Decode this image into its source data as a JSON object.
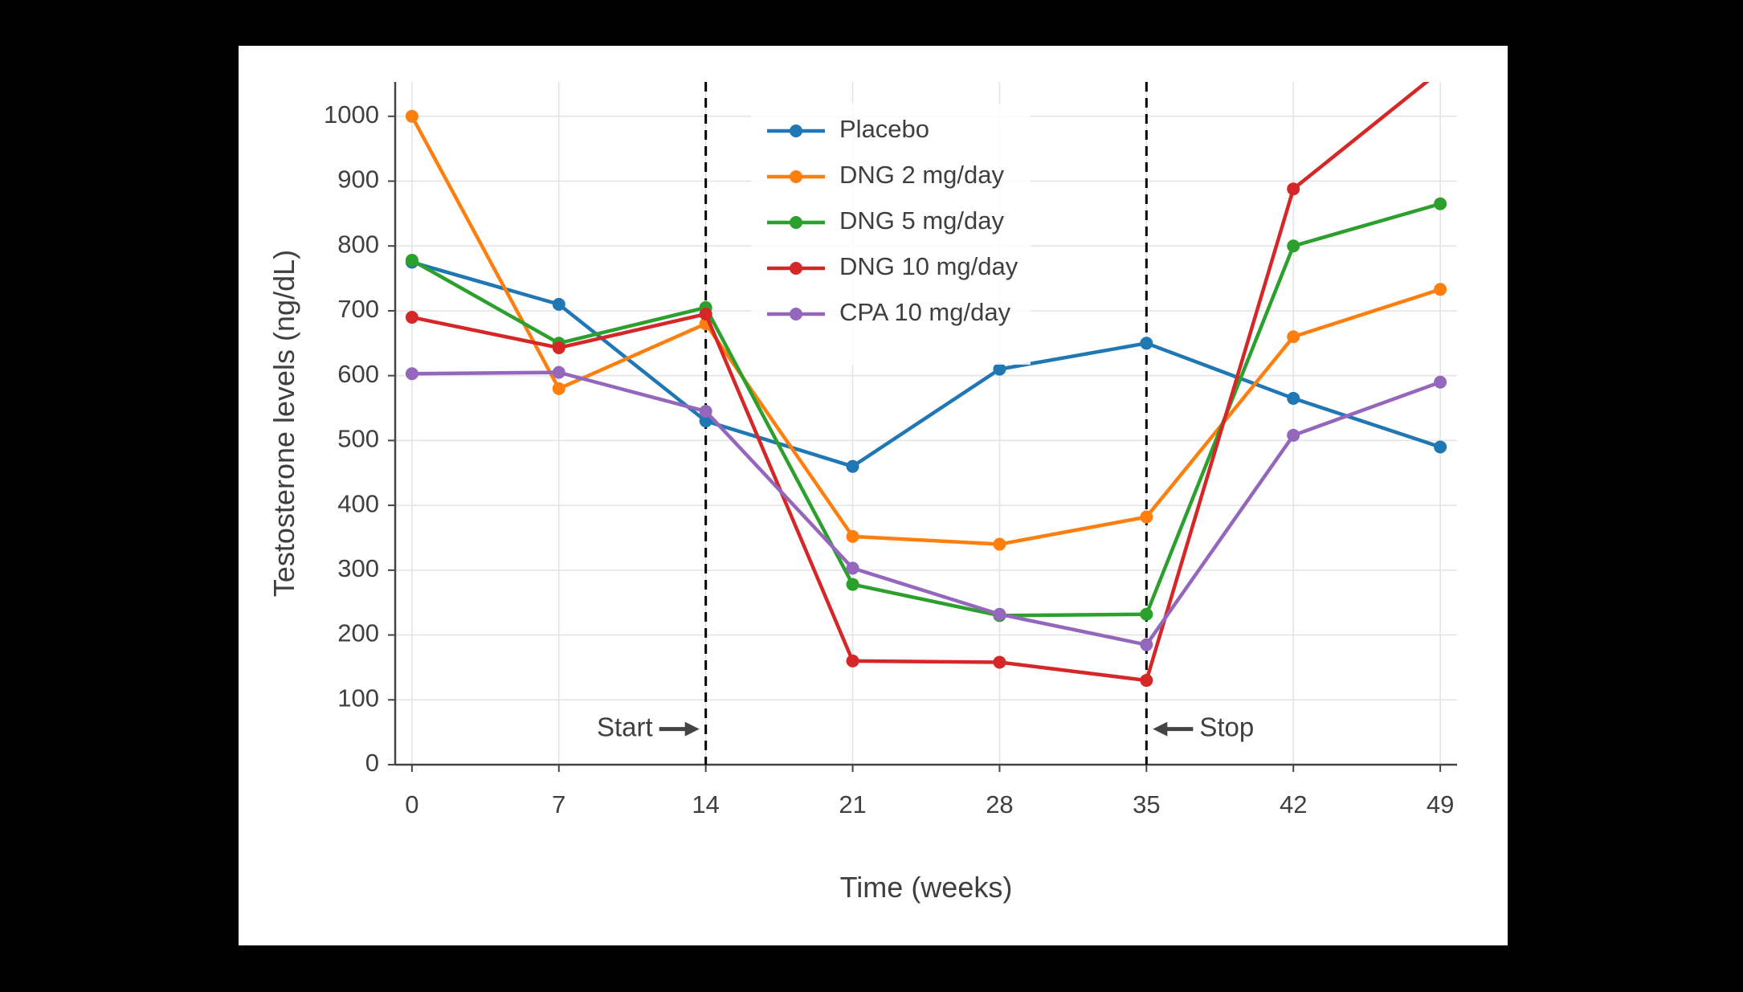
{
  "page": {
    "background": "#000000",
    "card_background": "#ffffff"
  },
  "chart_data": {
    "type": "line",
    "title": "",
    "xlabel": "Time (weeks)",
    "ylabel": "Testosterone levels (ng/dL)",
    "x": [
      0,
      7,
      14,
      21,
      28,
      35,
      42,
      49
    ],
    "x_ticks": [
      "0",
      "7",
      "14",
      "21",
      "28",
      "35",
      "42",
      "49"
    ],
    "y_ticks": [
      "0",
      "100",
      "200",
      "300",
      "400",
      "500",
      "600",
      "700",
      "800",
      "900",
      "1000"
    ],
    "xlim": [
      -0.8,
      49.8
    ],
    "ylim": [
      0,
      1053
    ],
    "grid": true,
    "legend_position": "inside-top-center",
    "series": [
      {
        "name": "Placebo",
        "color": "#1f77b4",
        "values": [
          775,
          710,
          530,
          460,
          610,
          650,
          565,
          490
        ]
      },
      {
        "name": "DNG 2 mg/day",
        "color": "#ff7f0e",
        "values": [
          1000,
          580,
          680,
          352,
          340,
          382,
          660,
          733
        ]
      },
      {
        "name": "DNG 5 mg/day",
        "color": "#2ca02c",
        "values": [
          778,
          650,
          705,
          278,
          230,
          232,
          800,
          865
        ]
      },
      {
        "name": "DNG 10 mg/day",
        "color": "#d62728",
        "values": [
          690,
          643,
          695,
          160,
          158,
          130,
          888,
          1070
        ]
      },
      {
        "name": "CPA 10 mg/day",
        "color": "#9467bd",
        "values": [
          603,
          605,
          545,
          303,
          232,
          185,
          508,
          590
        ]
      }
    ],
    "vlines": [
      {
        "x": 14,
        "style": "dashed",
        "color": "#000000",
        "label": "treatment-start"
      },
      {
        "x": 35,
        "style": "dashed",
        "color": "#000000",
        "label": "treatment-stop"
      }
    ],
    "annotations": [
      {
        "text": "Start",
        "x": 14,
        "y": 55,
        "arrow": "right"
      },
      {
        "text": "Stop",
        "x": 35,
        "y": 55,
        "arrow": "left"
      }
    ],
    "colors": {
      "grid": "#e3e3e3",
      "axis": "#444444",
      "text": "#3f3f3f",
      "vline": "#000000",
      "annotation": "#444444",
      "legend_bg": "rgba(255,255,255,0.85)"
    }
  }
}
